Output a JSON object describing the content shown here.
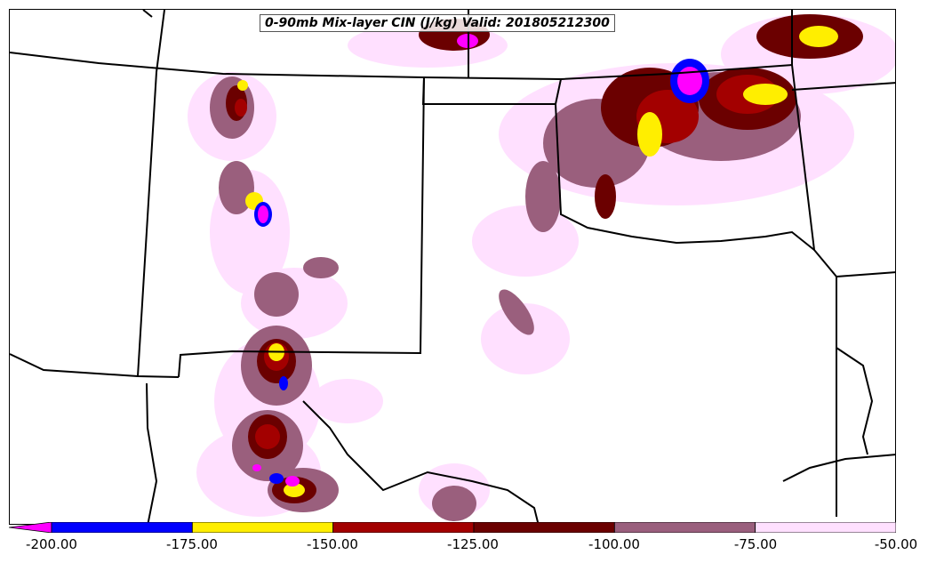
{
  "title": "0-90mb Mix-layer CIN (J/kg) Valid: 201805212300",
  "colorbar": {
    "ticks": [
      "-200.00",
      "-175.00",
      "-150.00",
      "-125.00",
      "-100.00",
      "-75.00",
      "-50.00"
    ],
    "bins": [
      {
        "range": "< -200",
        "color": "#ff00ff"
      },
      {
        "range": "-200 to -175",
        "color": "#0000ff"
      },
      {
        "range": "-175 to -150",
        "color": "#ffee00"
      },
      {
        "range": "-150 to -125",
        "color": "#a30000"
      },
      {
        "range": "-125 to -100",
        "color": "#6b0000"
      },
      {
        "range": "-100 to -75",
        "color": "#9a5f7d"
      },
      {
        "range": "-75 to -50",
        "color": "#ffe0ff"
      }
    ]
  }
}
